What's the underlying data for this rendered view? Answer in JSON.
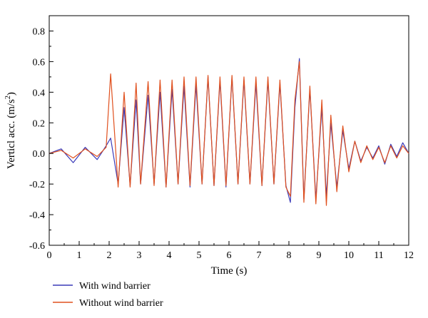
{
  "chart_data": {
    "type": "line",
    "xlabel": "Time (s)",
    "ylabel_main": "Verticl acc. (m/s",
    "ylabel_sup": "2",
    "ylabel_close": ")",
    "xlim": [
      0,
      12
    ],
    "ylim": [
      -0.6,
      0.9
    ],
    "x_ticks": [
      0,
      1,
      2,
      3,
      4,
      5,
      6,
      7,
      8,
      9,
      10,
      11,
      12
    ],
    "y_ticks": [
      -0.6,
      -0.4,
      -0.2,
      0.0,
      0.2,
      0.4,
      0.6,
      0.8
    ],
    "y_tick_labels": [
      "-0.6",
      "-0.4",
      "-0.2",
      "0.0",
      "0.2",
      "0.4",
      "0.6",
      "0.8"
    ],
    "grid": false,
    "legend_position": "bottom-left, below plot",
    "series": [
      {
        "name": "With wind barrier",
        "color": "#3a3ab8",
        "x": [
          0.0,
          0.4,
          0.8,
          1.2,
          1.6,
          1.9,
          2.05,
          2.3,
          2.5,
          2.7,
          2.9,
          3.05,
          3.3,
          3.5,
          3.7,
          3.9,
          4.1,
          4.3,
          4.5,
          4.7,
          4.9,
          5.1,
          5.3,
          5.5,
          5.7,
          5.9,
          6.1,
          6.3,
          6.5,
          6.7,
          6.9,
          7.1,
          7.3,
          7.5,
          7.7,
          7.9,
          8.05,
          8.2,
          8.35,
          8.5,
          8.7,
          8.9,
          9.1,
          9.25,
          9.4,
          9.6,
          9.8,
          10.0,
          10.2,
          10.4,
          10.6,
          10.8,
          11.0,
          11.2,
          11.4,
          11.6,
          11.8,
          12.0
        ],
        "y": [
          0.0,
          0.03,
          -0.06,
          0.04,
          -0.04,
          0.05,
          0.1,
          -0.2,
          0.3,
          -0.21,
          0.35,
          -0.2,
          0.38,
          -0.2,
          0.4,
          -0.22,
          0.42,
          -0.2,
          0.44,
          -0.22,
          0.45,
          -0.2,
          0.5,
          -0.21,
          0.48,
          -0.22,
          0.5,
          -0.2,
          0.48,
          -0.2,
          0.46,
          -0.21,
          0.48,
          -0.2,
          0.46,
          -0.21,
          -0.32,
          0.3,
          0.62,
          -0.3,
          0.42,
          -0.3,
          0.3,
          -0.28,
          0.2,
          -0.22,
          0.15,
          -0.1,
          0.08,
          -0.05,
          0.04,
          -0.03,
          0.05,
          -0.07,
          0.06,
          -0.02,
          0.07,
          0.0
        ]
      },
      {
        "name": "Without wind barrier",
        "color": "#e0501e",
        "x": [
          0.0,
          0.4,
          0.8,
          1.2,
          1.6,
          1.9,
          2.05,
          2.3,
          2.5,
          2.7,
          2.9,
          3.05,
          3.3,
          3.5,
          3.7,
          3.9,
          4.1,
          4.3,
          4.5,
          4.7,
          4.9,
          5.1,
          5.3,
          5.5,
          5.7,
          5.9,
          6.1,
          6.3,
          6.5,
          6.7,
          6.9,
          7.1,
          7.3,
          7.5,
          7.7,
          7.9,
          8.05,
          8.2,
          8.35,
          8.5,
          8.7,
          8.9,
          9.1,
          9.25,
          9.4,
          9.6,
          9.8,
          10.0,
          10.2,
          10.4,
          10.6,
          10.8,
          11.0,
          11.2,
          11.4,
          11.6,
          11.8,
          12.0
        ],
        "y": [
          0.0,
          0.02,
          -0.03,
          0.03,
          -0.02,
          0.04,
          0.52,
          -0.22,
          0.4,
          -0.22,
          0.46,
          -0.2,
          0.47,
          -0.21,
          0.48,
          -0.22,
          0.48,
          -0.2,
          0.5,
          -0.21,
          0.5,
          -0.2,
          0.51,
          -0.21,
          0.5,
          -0.21,
          0.51,
          -0.2,
          0.5,
          -0.2,
          0.5,
          -0.21,
          0.5,
          -0.2,
          0.48,
          -0.22,
          -0.28,
          0.35,
          0.6,
          -0.32,
          0.44,
          -0.33,
          0.35,
          -0.34,
          0.25,
          -0.25,
          0.18,
          -0.12,
          0.08,
          -0.06,
          0.05,
          -0.04,
          0.04,
          -0.06,
          0.05,
          -0.03,
          0.05,
          0.0
        ]
      }
    ]
  }
}
